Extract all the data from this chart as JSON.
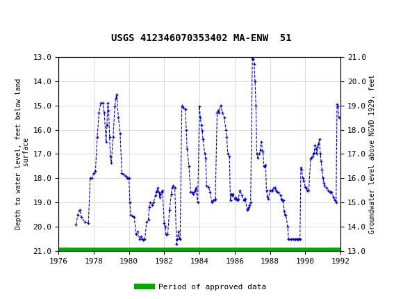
{
  "title": "USGS 412346070353402 MA-ENW  51",
  "ylabel_left": "Depth to water level, feet below land\n surface",
  "ylabel_right": "Groundwater level above NGVD 1929, feet",
  "xlim": [
    1976,
    1992
  ],
  "ylim_left": [
    21.0,
    13.0
  ],
  "ylim_right": [
    13.0,
    21.0
  ],
  "yticks_left": [
    13.0,
    14.0,
    15.0,
    16.0,
    17.0,
    18.0,
    19.0,
    20.0,
    21.0
  ],
  "yticks_right": [
    13.0,
    14.0,
    15.0,
    16.0,
    17.0,
    18.0,
    19.0,
    20.0,
    21.0
  ],
  "xticks": [
    1976,
    1978,
    1980,
    1982,
    1984,
    1986,
    1988,
    1990,
    1992
  ],
  "header_color": "#1a6b3c",
  "line_color": "#0000cc",
  "marker": "+",
  "linestyle": "--",
  "legend_label": "Period of approved data",
  "legend_color": "#00aa00",
  "background_color": "#ffffff",
  "grid_color": "#cccccc",
  "time_series": [
    [
      1977.0,
      19.9
    ],
    [
      1977.1,
      19.5
    ],
    [
      1977.2,
      19.3
    ],
    [
      1977.3,
      19.6
    ],
    [
      1977.5,
      19.8
    ],
    [
      1977.7,
      19.85
    ],
    [
      1977.8,
      18.0
    ],
    [
      1977.9,
      18.0
    ],
    [
      1978.0,
      17.8
    ],
    [
      1978.1,
      17.7
    ],
    [
      1978.2,
      16.3
    ],
    [
      1978.3,
      15.3
    ],
    [
      1978.4,
      14.9
    ],
    [
      1978.5,
      14.9
    ],
    [
      1978.6,
      15.3
    ],
    [
      1978.7,
      16.5
    ],
    [
      1978.75,
      15.8
    ],
    [
      1978.8,
      14.9
    ],
    [
      1978.85,
      15.2
    ],
    [
      1978.9,
      16.3
    ],
    [
      1978.95,
      17.1
    ],
    [
      1979.0,
      17.35
    ],
    [
      1979.1,
      16.3
    ],
    [
      1979.2,
      15.05
    ],
    [
      1979.25,
      14.7
    ],
    [
      1979.3,
      14.55
    ],
    [
      1979.4,
      15.5
    ],
    [
      1979.5,
      16.15
    ],
    [
      1979.6,
      17.8
    ],
    [
      1979.7,
      17.85
    ],
    [
      1979.8,
      17.9
    ],
    [
      1979.9,
      18.0
    ],
    [
      1979.95,
      18.0
    ],
    [
      1980.0,
      18.0
    ],
    [
      1980.05,
      19.0
    ],
    [
      1980.1,
      19.5
    ],
    [
      1980.2,
      19.55
    ],
    [
      1980.3,
      19.6
    ],
    [
      1980.4,
      20.3
    ],
    [
      1980.5,
      20.2
    ],
    [
      1980.6,
      20.5
    ],
    [
      1980.7,
      20.4
    ],
    [
      1980.75,
      20.5
    ],
    [
      1980.8,
      20.55
    ],
    [
      1980.9,
      20.5
    ],
    [
      1981.0,
      19.8
    ],
    [
      1981.1,
      19.7
    ],
    [
      1981.15,
      19.2
    ],
    [
      1981.2,
      19.0
    ],
    [
      1981.3,
      19.1
    ],
    [
      1981.4,
      19.0
    ],
    [
      1981.5,
      18.7
    ],
    [
      1981.55,
      18.55
    ],
    [
      1981.6,
      18.5
    ],
    [
      1981.65,
      18.4
    ],
    [
      1981.7,
      18.6
    ],
    [
      1981.75,
      18.8
    ],
    [
      1981.8,
      18.65
    ],
    [
      1981.85,
      18.55
    ],
    [
      1981.9,
      18.5
    ],
    [
      1982.0,
      19.85
    ],
    [
      1982.05,
      20.0
    ],
    [
      1982.1,
      20.3
    ],
    [
      1982.2,
      20.3
    ],
    [
      1982.3,
      19.3
    ],
    [
      1982.4,
      18.65
    ],
    [
      1982.45,
      18.4
    ],
    [
      1982.5,
      18.3
    ],
    [
      1982.6,
      18.4
    ],
    [
      1982.7,
      20.7
    ],
    [
      1982.75,
      20.5
    ],
    [
      1982.8,
      20.2
    ],
    [
      1982.85,
      20.45
    ],
    [
      1982.9,
      20.5
    ],
    [
      1983.0,
      15.0
    ],
    [
      1983.1,
      15.1
    ],
    [
      1983.2,
      15.15
    ],
    [
      1983.25,
      16.0
    ],
    [
      1983.3,
      16.8
    ],
    [
      1983.4,
      17.5
    ],
    [
      1983.5,
      18.55
    ],
    [
      1983.6,
      18.6
    ],
    [
      1983.65,
      18.65
    ],
    [
      1983.7,
      18.55
    ],
    [
      1983.75,
      18.5
    ],
    [
      1983.8,
      18.4
    ],
    [
      1983.9,
      19.0
    ],
    [
      1984.0,
      15.05
    ],
    [
      1984.05,
      15.5
    ],
    [
      1984.1,
      15.8
    ],
    [
      1984.15,
      16.05
    ],
    [
      1984.2,
      16.4
    ],
    [
      1984.3,
      17.0
    ],
    [
      1984.35,
      17.2
    ],
    [
      1984.4,
      18.3
    ],
    [
      1984.5,
      18.35
    ],
    [
      1984.6,
      18.55
    ],
    [
      1984.7,
      19.0
    ],
    [
      1984.8,
      18.9
    ],
    [
      1984.85,
      18.9
    ],
    [
      1984.9,
      18.85
    ],
    [
      1985.0,
      15.3
    ],
    [
      1985.05,
      15.2
    ],
    [
      1985.1,
      15.3
    ],
    [
      1985.2,
      15.0
    ],
    [
      1985.3,
      15.3
    ],
    [
      1985.4,
      15.5
    ],
    [
      1985.5,
      16.0
    ],
    [
      1985.55,
      16.3
    ],
    [
      1985.6,
      17.0
    ],
    [
      1985.7,
      17.1
    ],
    [
      1985.75,
      18.9
    ],
    [
      1985.8,
      18.65
    ],
    [
      1985.85,
      18.7
    ],
    [
      1985.9,
      18.65
    ],
    [
      1986.0,
      18.85
    ],
    [
      1986.05,
      18.8
    ],
    [
      1986.1,
      18.85
    ],
    [
      1986.15,
      18.9
    ],
    [
      1986.2,
      18.85
    ],
    [
      1986.3,
      18.5
    ],
    [
      1986.4,
      18.7
    ],
    [
      1986.5,
      18.9
    ],
    [
      1986.55,
      18.85
    ],
    [
      1986.6,
      18.85
    ],
    [
      1986.7,
      19.3
    ],
    [
      1986.75,
      19.25
    ],
    [
      1986.8,
      19.2
    ],
    [
      1986.85,
      19.1
    ],
    [
      1986.9,
      19.0
    ],
    [
      1987.0,
      13.05
    ],
    [
      1987.05,
      13.1
    ],
    [
      1987.1,
      13.3
    ],
    [
      1987.15,
      14.0
    ],
    [
      1987.2,
      15.0
    ],
    [
      1987.25,
      17.0
    ],
    [
      1987.3,
      17.15
    ],
    [
      1987.4,
      17.0
    ],
    [
      1987.45,
      16.85
    ],
    [
      1987.5,
      16.5
    ],
    [
      1987.6,
      16.9
    ],
    [
      1987.65,
      17.5
    ],
    [
      1987.7,
      17.5
    ],
    [
      1987.75,
      17.45
    ],
    [
      1987.8,
      18.5
    ],
    [
      1987.85,
      18.75
    ],
    [
      1987.9,
      18.85
    ],
    [
      1988.0,
      18.5
    ],
    [
      1988.1,
      18.5
    ],
    [
      1988.15,
      18.5
    ],
    [
      1988.2,
      18.4
    ],
    [
      1988.3,
      18.4
    ],
    [
      1988.35,
      18.5
    ],
    [
      1988.4,
      18.55
    ],
    [
      1988.5,
      18.6
    ],
    [
      1988.6,
      18.7
    ],
    [
      1988.65,
      18.85
    ],
    [
      1988.7,
      18.9
    ],
    [
      1988.75,
      18.9
    ],
    [
      1988.8,
      19.35
    ],
    [
      1988.85,
      19.5
    ],
    [
      1988.9,
      19.5
    ],
    [
      1989.0,
      20.0
    ],
    [
      1989.05,
      20.5
    ],
    [
      1989.1,
      20.5
    ],
    [
      1989.2,
      20.5
    ],
    [
      1989.3,
      20.5
    ],
    [
      1989.4,
      20.5
    ],
    [
      1989.45,
      20.5
    ],
    [
      1989.5,
      20.5
    ],
    [
      1989.55,
      20.5
    ],
    [
      1989.6,
      20.5
    ],
    [
      1989.65,
      20.5
    ],
    [
      1989.7,
      20.5
    ],
    [
      1989.75,
      17.55
    ],
    [
      1989.8,
      17.65
    ],
    [
      1989.85,
      18.0
    ],
    [
      1989.9,
      18.1
    ],
    [
      1990.0,
      18.35
    ],
    [
      1990.05,
      18.4
    ],
    [
      1990.1,
      18.5
    ],
    [
      1990.2,
      18.5
    ],
    [
      1990.3,
      17.2
    ],
    [
      1990.35,
      17.15
    ],
    [
      1990.4,
      17.1
    ],
    [
      1990.45,
      17.0
    ],
    [
      1990.5,
      16.95
    ],
    [
      1990.55,
      16.65
    ],
    [
      1990.6,
      16.8
    ],
    [
      1990.65,
      17.0
    ],
    [
      1990.7,
      16.7
    ],
    [
      1990.75,
      16.6
    ],
    [
      1990.8,
      16.4
    ],
    [
      1990.85,
      17.0
    ],
    [
      1990.9,
      17.3
    ],
    [
      1990.95,
      17.65
    ],
    [
      1991.0,
      18.0
    ],
    [
      1991.05,
      18.2
    ],
    [
      1991.1,
      18.3
    ],
    [
      1991.2,
      18.4
    ],
    [
      1991.3,
      18.5
    ],
    [
      1991.4,
      18.55
    ],
    [
      1991.45,
      18.6
    ],
    [
      1991.5,
      18.55
    ],
    [
      1991.6,
      18.8
    ],
    [
      1991.7,
      18.9
    ],
    [
      1991.75,
      19.0
    ],
    [
      1991.8,
      14.95
    ],
    [
      1991.85,
      15.05
    ],
    [
      1991.9,
      15.5
    ]
  ]
}
